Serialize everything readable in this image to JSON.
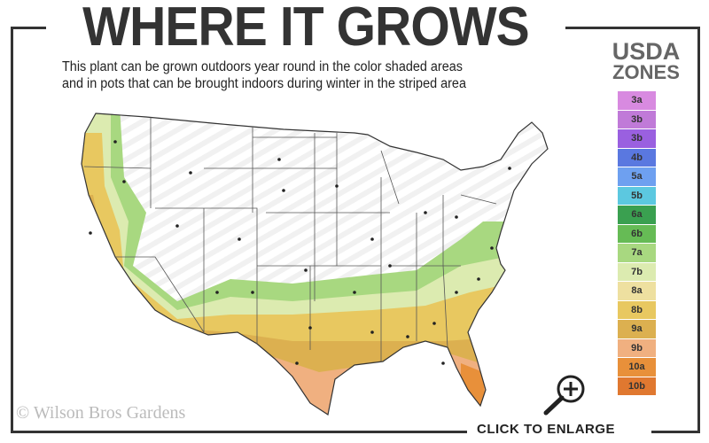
{
  "title": "WHERE IT GROWS",
  "subtitle_line1": "This plant can be grown outdoors year round in the color shaded areas",
  "subtitle_line2": "and in pots that can be brought indoors during winter in the striped area",
  "legend": {
    "title_line1": "USDA",
    "title_line2": "ZONES",
    "zones": [
      {
        "label": "3a",
        "color": "#d88ae0"
      },
      {
        "label": "3b",
        "color": "#c07ad8"
      },
      {
        "label": "3b",
        "color": "#9a60e0"
      },
      {
        "label": "4b",
        "color": "#5a78e0"
      },
      {
        "label": "5a",
        "color": "#6ea0f0"
      },
      {
        "label": "5b",
        "color": "#5cc8e0"
      },
      {
        "label": "6a",
        "color": "#3aa050"
      },
      {
        "label": "6b",
        "color": "#66bb55"
      },
      {
        "label": "7a",
        "color": "#a8d880"
      },
      {
        "label": "7b",
        "color": "#dcebb0"
      },
      {
        "label": "8a",
        "color": "#eee0a0"
      },
      {
        "label": "8b",
        "color": "#e8c860"
      },
      {
        "label": "9a",
        "color": "#dcb050"
      },
      {
        "label": "9b",
        "color": "#f0b080"
      },
      {
        "label": "10a",
        "color": "#e8903a"
      },
      {
        "label": "10b",
        "color": "#e07830"
      }
    ]
  },
  "map_icon": "usa-hardiness-map",
  "watermark": "© Wilson Bros Gardens",
  "enlarge_label": "CLICK TO ENLARGE",
  "enlarge_icon": "magnifier-plus-icon"
}
